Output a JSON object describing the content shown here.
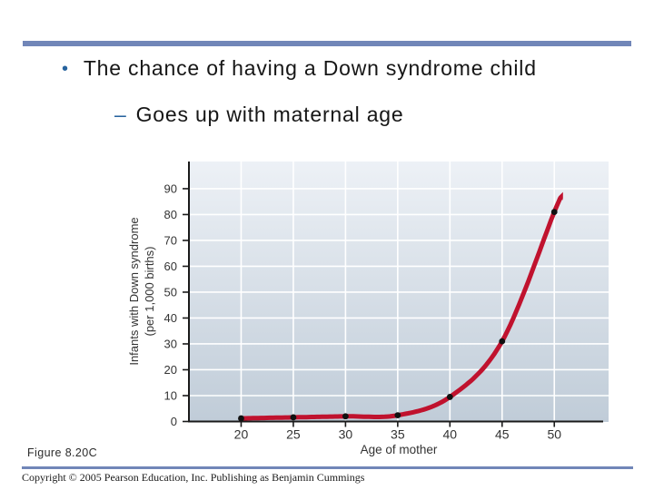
{
  "slide": {
    "bullet_glyph": "•",
    "title": "The chance of having a Down syndrome child",
    "dash_glyph": "–",
    "subtitle": "Goes up with maternal age",
    "figure_label": "Figure 8.20C",
    "copyright": "Copyright © 2005 Pearson Education, Inc. Publishing as Benjamin Cummings"
  },
  "colors": {
    "divider-bar": "#7186b8",
    "bullet-blue": "#27639e",
    "title-text": "#161616",
    "axis": "#1a1a1a",
    "tick-text": "#333333",
    "plot-top": "#edf1f6",
    "plot-bottom": "#c0ccd8",
    "grid": "#ffffff",
    "curve": "#c0122e",
    "point": "#111111"
  },
  "chart_data": {
    "type": "line",
    "title": "",
    "xlabel": "Age of mother",
    "ylabel": "Infants with Down syndrome (per 1,000 births)",
    "ylabel_line1": "Infants with Down syndrome",
    "ylabel_line2": "(per 1,000 births)",
    "series_name": "Infants with Down syndrome per 1,000 births",
    "x": [
      20,
      25,
      30,
      35,
      40,
      45,
      50
    ],
    "y": [
      1.2,
      1.6,
      2.0,
      2.4,
      9.5,
      31,
      81
    ],
    "curve_extension": {
      "x": 50.6,
      "y": 86
    },
    "x_ticks": [
      20,
      25,
      30,
      35,
      40,
      45,
      50
    ],
    "y_ticks": [
      0,
      10,
      20,
      30,
      40,
      50,
      60,
      70,
      80,
      90
    ],
    "xlim": [
      15,
      55.2
    ],
    "ylim": [
      0,
      100.5
    ],
    "grid": true,
    "legend": false
  }
}
